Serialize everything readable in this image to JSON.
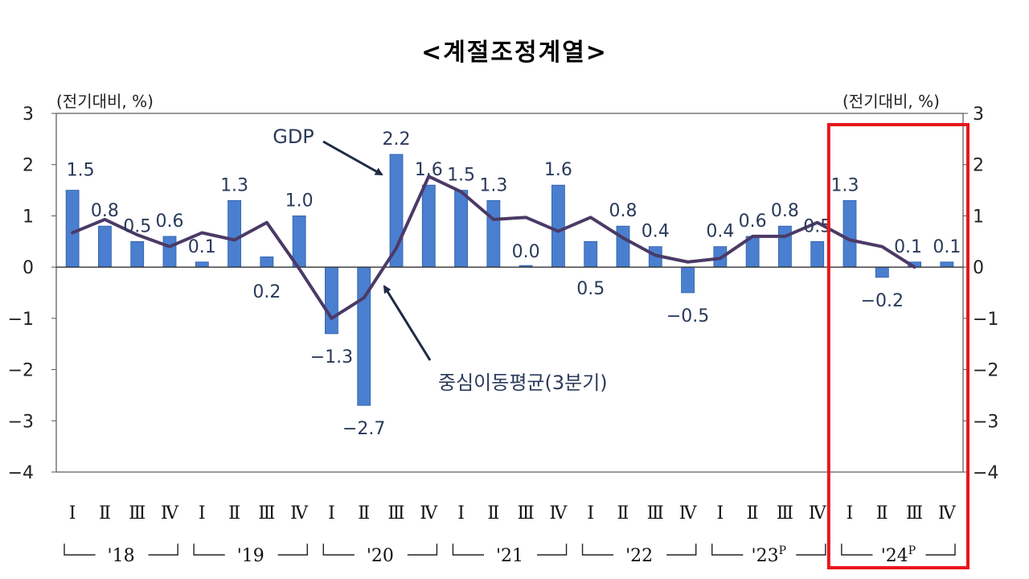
{
  "title": "<계절조정계열>",
  "unit_left": "(전기대비, %)",
  "unit_right": "(전기대비, %)",
  "annotations": {
    "gdp": "GDP",
    "moving_avg": "중심이동평균(3분기)"
  },
  "colors": {
    "bar": "#4a7fd0",
    "line": "#4b3a66",
    "highlight": "#e8161b"
  },
  "chart_data": {
    "type": "bar",
    "quarter_labels": [
      "Ⅰ",
      "Ⅱ",
      "Ⅲ",
      "Ⅳ",
      "Ⅰ",
      "Ⅱ",
      "Ⅲ",
      "Ⅳ",
      "Ⅰ",
      "Ⅱ",
      "Ⅲ",
      "Ⅳ",
      "Ⅰ",
      "Ⅱ",
      "Ⅲ",
      "Ⅳ",
      "Ⅰ",
      "Ⅱ",
      "Ⅲ",
      "Ⅳ",
      "Ⅰ",
      "Ⅱ",
      "Ⅲ",
      "Ⅳ",
      "Ⅰ",
      "Ⅱ",
      "Ⅲ",
      "Ⅳ"
    ],
    "years": [
      "'18",
      "'19",
      "'20",
      "'21",
      "'22",
      "'23",
      "'24"
    ],
    "year_superscripts": [
      "",
      "",
      "",
      "",
      "",
      "P",
      "P"
    ],
    "series": [
      {
        "name": "GDP",
        "type": "bar",
        "values": [
          1.5,
          0.8,
          0.5,
          0.6,
          0.1,
          1.3,
          0.2,
          1.0,
          -1.3,
          -2.7,
          2.2,
          1.6,
          1.5,
          1.3,
          0.0,
          1.6,
          0.5,
          0.8,
          0.4,
          -0.5,
          0.4,
          0.6,
          0.8,
          0.5,
          1.3,
          -0.2,
          0.1,
          0.1
        ],
        "labels": [
          "1.5",
          "0.8",
          "0.5",
          "0.6",
          "0.1",
          "1.3",
          "0.2",
          "1.0",
          "−1.3",
          "−2.7",
          "2.2",
          "1.6",
          "1.5",
          "1.3",
          "0.0",
          "1.6",
          "0.5",
          "0.8",
          "0.4",
          "−0.5",
          "0.4",
          "0.6",
          "0.8",
          "0.5",
          "1.3",
          "−0.2",
          "0.1",
          "0.1"
        ]
      },
      {
        "name": "중심이동평균(3분기)",
        "type": "line",
        "values": [
          0.67,
          0.93,
          0.63,
          0.4,
          0.67,
          0.53,
          0.87,
          -0.03,
          -1.0,
          -0.6,
          0.37,
          1.77,
          1.47,
          0.93,
          0.97,
          0.7,
          0.97,
          0.57,
          0.23,
          0.1,
          0.17,
          0.6,
          0.6,
          0.87,
          0.53,
          0.4,
          0.0
        ]
      }
    ],
    "ylim": [
      -4,
      3
    ],
    "y_ticks": [
      "3",
      "2",
      "1",
      "0",
      "−1",
      "−2",
      "−3",
      "−4"
    ],
    "y_tick_values": [
      3,
      2,
      1,
      0,
      -1,
      -2,
      -3,
      -4
    ],
    "highlight_year": "'24"
  }
}
